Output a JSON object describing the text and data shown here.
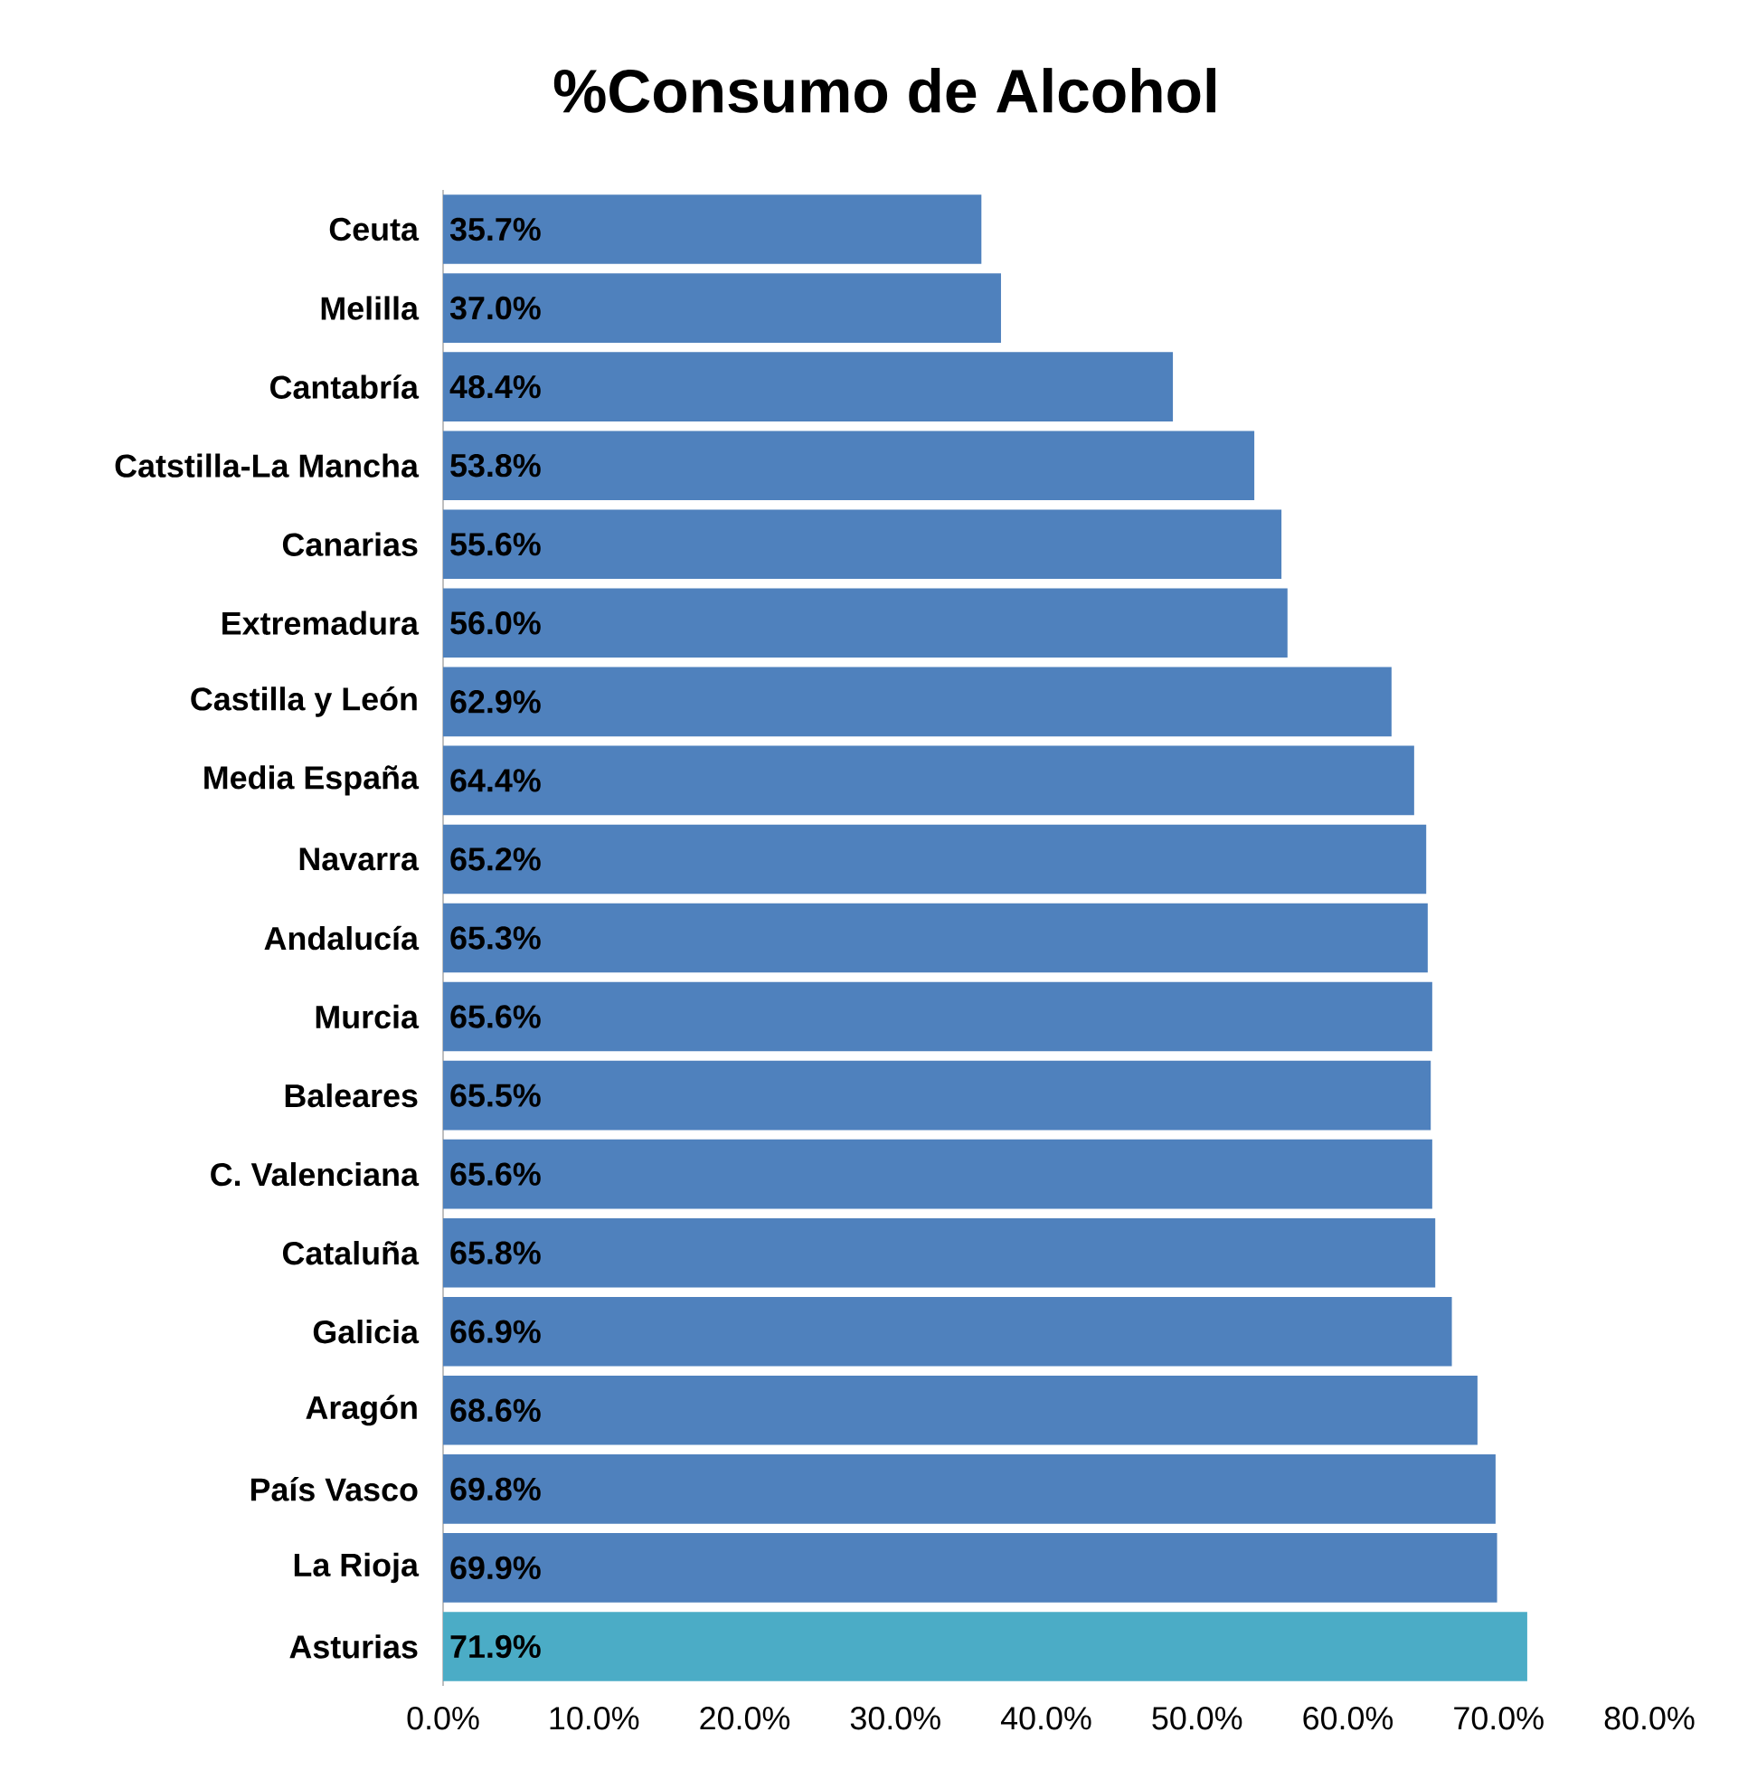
{
  "chart_data": {
    "type": "bar",
    "orientation": "horizontal",
    "title": "%Consumo de Alcohol",
    "categories": [
      "Ceuta",
      "Melilla",
      "Cantabría",
      "Catstilla-La Mancha",
      "Canarias",
      "Extremadura",
      "Castilla y León",
      "Media España",
      "Navarra",
      "Andalucía",
      "Murcia",
      "Baleares",
      "C. Valenciana",
      "Cataluña",
      "Galicia",
      "Aragón",
      "País Vasco",
      "La Rioja",
      "Asturias"
    ],
    "values": [
      35.7,
      37.0,
      48.4,
      53.8,
      55.6,
      56.0,
      62.9,
      64.4,
      65.2,
      65.3,
      65.6,
      65.5,
      65.6,
      65.8,
      66.9,
      68.6,
      69.8,
      69.9,
      71.9
    ],
    "value_labels": [
      "35.7%",
      "37.0%",
      "48.4%",
      "53.8%",
      "55.6%",
      "56.0%",
      "62.9%",
      "64.4%",
      "65.2%",
      "65.3%",
      "65.6%",
      "65.5%",
      "65.6%",
      "65.8%",
      "66.9%",
      "68.6%",
      "69.8%",
      "69.9%",
      "71.9%"
    ],
    "colors": [
      "#4f81bd",
      "#4f81bd",
      "#4f81bd",
      "#4f81bd",
      "#4f81bd",
      "#4f81bd",
      "#4f81bd",
      "#4f81bd",
      "#4f81bd",
      "#4f81bd",
      "#4f81bd",
      "#4f81bd",
      "#4f81bd",
      "#4f81bd",
      "#4f81bd",
      "#4f81bd",
      "#4f81bd",
      "#4f81bd",
      "#4bacc6"
    ],
    "xlim": [
      0,
      80
    ],
    "xticks": [
      {
        "value": 0,
        "label": "0.0%"
      },
      {
        "value": 10,
        "label": "10.0%"
      },
      {
        "value": 20,
        "label": "20.0%"
      },
      {
        "value": 30,
        "label": "30.0%"
      },
      {
        "value": 40,
        "label": "40.0%"
      },
      {
        "value": 50,
        "label": "50.0%"
      },
      {
        "value": 60,
        "label": "60.0%"
      },
      {
        "value": 70,
        "label": "70.0%"
      },
      {
        "value": 80,
        "label": "80.0%"
      }
    ]
  }
}
